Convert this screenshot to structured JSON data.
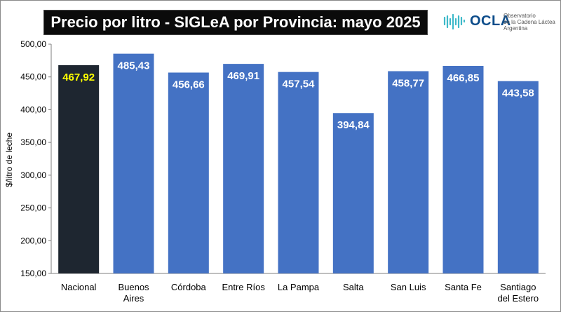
{
  "title": "Precio por litro - SIGLeA por Provincia: mayo 2025",
  "logo": {
    "name": "OCLA",
    "line1": "Observatorio",
    "line2": "de la Cadena Láctea",
    "line3": "Argentina"
  },
  "colors": {
    "national_bar": "#1e2630",
    "province_bar": "#4472c4",
    "national_label": "#ffff00",
    "province_label": "#ffffff",
    "logo_accent": "#3db9c9"
  },
  "chart_data": {
    "type": "bar",
    "title": "Precio por litro - SIGLeA por Provincia: mayo 2025",
    "xlabel": "",
    "ylabel": "$/litro de leche",
    "ylim": [
      150,
      500
    ],
    "yticks": [
      "150,00",
      "200,00",
      "250,00",
      "300,00",
      "350,00",
      "400,00",
      "450,00",
      "500,00"
    ],
    "ytick_values": [
      150,
      200,
      250,
      300,
      350,
      400,
      450,
      500
    ],
    "grid": false,
    "categories": [
      [
        "Nacional"
      ],
      [
        "Buenos",
        "Aires"
      ],
      [
        "Córdoba"
      ],
      [
        "Entre Ríos"
      ],
      [
        "La Pampa"
      ],
      [
        "Salta"
      ],
      [
        "San Luis"
      ],
      [
        "Santa Fe"
      ],
      [
        "Santiago",
        "del Estero"
      ]
    ],
    "values": [
      467.92,
      485.43,
      456.66,
      469.91,
      457.54,
      394.84,
      458.77,
      466.85,
      443.58
    ],
    "value_labels": [
      "467,92",
      "485,43",
      "456,66",
      "469,91",
      "457,54",
      "394,84",
      "458,77",
      "466,85",
      "443,58"
    ],
    "highlight_index": 0
  }
}
